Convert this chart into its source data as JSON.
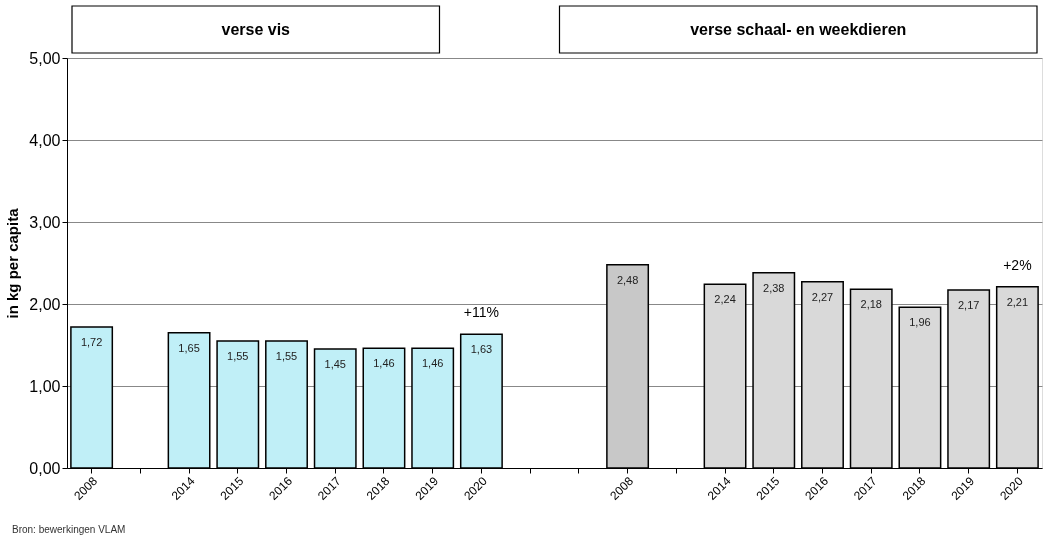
{
  "chart_data": {
    "type": "bar",
    "ylabel": "in kg per capita",
    "categories": [
      "2008",
      null,
      "2014",
      "2015",
      "2016",
      "2017",
      "2018",
      "2019",
      "2020",
      null,
      null,
      "2008",
      null,
      "2014",
      "2015",
      "2016",
      "2017",
      "2018",
      "2019",
      "2020"
    ],
    "values": [
      1.72,
      null,
      1.65,
      1.55,
      1.55,
      1.45,
      1.46,
      1.46,
      1.63,
      null,
      null,
      2.48,
      null,
      2.24,
      2.38,
      2.27,
      2.18,
      1.96,
      2.17,
      2.21
    ],
    "colors": [
      "#c0eff7",
      null,
      "#c0eff7",
      "#c0eff7",
      "#c0eff7",
      "#c0eff7",
      "#c0eff7",
      "#c0eff7",
      "#c0eff7",
      null,
      null,
      "#c8c8c8",
      null,
      "#d9d9d9",
      "#d9d9d9",
      "#d9d9d9",
      "#d9d9d9",
      "#d9d9d9",
      "#d9d9d9",
      "#d9d9d9"
    ],
    "value_labels": [
      "1,72",
      null,
      "1,65",
      "1,55",
      "1,55",
      "1,45",
      "1,46",
      "1,46",
      "1,63",
      null,
      null,
      "2,48",
      null,
      "2,24",
      "2,38",
      "2,27",
      "2,18",
      "1,96",
      "2,17",
      "2,21"
    ],
    "ylim": [
      0,
      5
    ],
    "yticks": [
      {
        "value": 0,
        "label": "0,00"
      },
      {
        "value": 1,
        "label": "1,00"
      },
      {
        "value": 2,
        "label": "2,00"
      },
      {
        "value": 3,
        "label": "3,00"
      },
      {
        "value": 4,
        "label": "4,00"
      },
      {
        "value": 5,
        "label": "5,00"
      }
    ],
    "grid": "y",
    "annotations": [
      "verse vis",
      "verse schaal- en weekdieren",
      "+11%",
      "+2%",
      "Bron: bewerkingen VLAM"
    ]
  }
}
